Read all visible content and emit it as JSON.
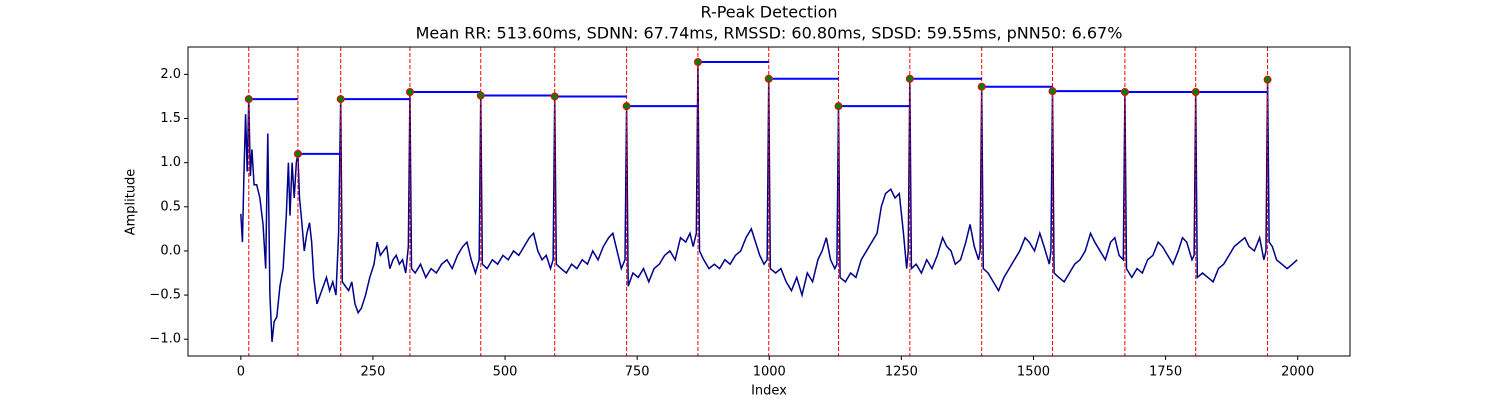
{
  "chart_data": {
    "type": "line",
    "title": "R-Peak Detection",
    "subtitle": "Mean RR: 513.60ms, SDNN: 67.74ms, RMSSD: 60.80ms, SDSD: 59.55ms, pNN50: 6.67%",
    "xlabel": "Index",
    "ylabel": "Amplitude",
    "color": "#00008b",
    "x": [
      0,
      3,
      6,
      9,
      12,
      15,
      18,
      21,
      25,
      30,
      36,
      42,
      47,
      51,
      55,
      59,
      63,
      68,
      74,
      80,
      86,
      90,
      93,
      97,
      101,
      105,
      108,
      111,
      115,
      120,
      125,
      130,
      134,
      138,
      144,
      150,
      156,
      162,
      168,
      174,
      180,
      185,
      189,
      192,
      198,
      204,
      210,
      216,
      222,
      228,
      236,
      244,
      252,
      258,
      264,
      270,
      276,
      282,
      288,
      294,
      300,
      306,
      312,
      317,
      320,
      323,
      330,
      340,
      350,
      360,
      370,
      380,
      390,
      400,
      410,
      420,
      428,
      436,
      444,
      451,
      454,
      457,
      466,
      476,
      486,
      496,
      506,
      516,
      526,
      536,
      546,
      554,
      562,
      570,
      578,
      586,
      591,
      594,
      597,
      606,
      616,
      626,
      636,
      646,
      656,
      666,
      676,
      686,
      696,
      704,
      712,
      720,
      727,
      730,
      733,
      742,
      752,
      762,
      772,
      782,
      792,
      802,
      812,
      822,
      832,
      842,
      850,
      856,
      862,
      865,
      868,
      876,
      886,
      896,
      906,
      916,
      926,
      936,
      946,
      956,
      966,
      974,
      982,
      990,
      996,
      999,
      1002,
      1012,
      1022,
      1032,
      1042,
      1052,
      1062,
      1072,
      1082,
      1092,
      1100,
      1108,
      1116,
      1124,
      1128,
      1131,
      1134,
      1144,
      1154,
      1164,
      1174,
      1184,
      1194,
      1204,
      1212,
      1220,
      1230,
      1238,
      1246,
      1254,
      1260,
      1263,
      1266,
      1269,
      1278,
      1288,
      1298,
      1308,
      1318,
      1328,
      1336,
      1344,
      1352,
      1362,
      1372,
      1380,
      1388,
      1396,
      1399,
      1402,
      1405,
      1414,
      1424,
      1434,
      1444,
      1454,
      1464,
      1474,
      1484,
      1492,
      1502,
      1512,
      1520,
      1530,
      1533,
      1536,
      1539,
      1548,
      1558,
      1568,
      1578,
      1588,
      1598,
      1608,
      1616,
      1626,
      1636,
      1646,
      1654,
      1662,
      1670,
      1673,
      1676,
      1686,
      1696,
      1706,
      1716,
      1726,
      1736,
      1744,
      1754,
      1764,
      1774,
      1782,
      1790,
      1800,
      1804,
      1807,
      1810,
      1820,
      1830,
      1840,
      1850,
      1860,
      1870,
      1880,
      1890,
      1900,
      1908,
      1918,
      1928,
      1936,
      1940,
      1943,
      1946,
      1952,
      1960,
      1970,
      1980,
      1990,
      1999
    ],
    "values": [
      0.42,
      0.1,
      0.9,
      1.55,
      0.9,
      1.72,
      0.85,
      1.15,
      0.75,
      0.75,
      0.6,
      0.3,
      -0.2,
      1.33,
      -0.5,
      -1.03,
      -0.8,
      -0.75,
      -0.4,
      -0.2,
      0.4,
      1.0,
      0.4,
      1.0,
      0.6,
      1.0,
      1.1,
      0.6,
      0.35,
      0.0,
      0.2,
      0.32,
      0.1,
      -0.3,
      -0.6,
      -0.5,
      -0.4,
      -0.3,
      -0.45,
      -0.35,
      -0.5,
      0.2,
      1.72,
      -0.35,
      -0.4,
      -0.45,
      -0.35,
      -0.6,
      -0.7,
      -0.65,
      -0.5,
      -0.3,
      -0.15,
      0.1,
      -0.05,
      0.0,
      0.05,
      -0.2,
      -0.1,
      -0.05,
      -0.15,
      -0.1,
      -0.25,
      0.05,
      1.8,
      -0.2,
      -0.25,
      -0.15,
      -0.3,
      -0.2,
      -0.25,
      -0.15,
      -0.1,
      -0.2,
      -0.05,
      0.05,
      0.1,
      -0.1,
      -0.25,
      -0.1,
      1.76,
      -0.15,
      -0.2,
      -0.1,
      -0.15,
      -0.05,
      -0.1,
      0.0,
      -0.05,
      0.05,
      0.15,
      0.2,
      0.0,
      -0.1,
      -0.05,
      -0.2,
      -0.1,
      1.75,
      -0.15,
      -0.2,
      -0.25,
      -0.15,
      -0.2,
      -0.1,
      -0.15,
      0.0,
      -0.1,
      0.05,
      0.15,
      0.2,
      0.0,
      -0.2,
      -0.1,
      1.64,
      -0.4,
      -0.25,
      -0.3,
      -0.2,
      -0.35,
      -0.2,
      -0.15,
      -0.05,
      0.0,
      -0.1,
      0.15,
      0.1,
      0.2,
      0.05,
      0.2,
      2.14,
      0.0,
      -0.1,
      -0.2,
      -0.15,
      -0.2,
      -0.1,
      -0.15,
      -0.05,
      0.0,
      0.15,
      0.25,
      0.1,
      -0.05,
      -0.15,
      -0.1,
      1.95,
      -0.2,
      -0.25,
      -0.2,
      -0.35,
      -0.45,
      -0.3,
      -0.5,
      -0.25,
      -0.35,
      -0.1,
      0.0,
      0.15,
      -0.1,
      -0.2,
      -0.15,
      1.64,
      -0.3,
      -0.35,
      -0.25,
      -0.3,
      -0.1,
      0.0,
      0.1,
      0.2,
      0.5,
      0.65,
      0.7,
      0.6,
      0.65,
      0.2,
      -0.2,
      0.0,
      1.95,
      -0.2,
      -0.15,
      -0.25,
      -0.1,
      -0.2,
      -0.05,
      0.15,
      0.05,
      0.0,
      -0.15,
      -0.1,
      0.1,
      0.3,
      0.05,
      -0.1,
      0.0,
      1.86,
      -0.2,
      -0.25,
      -0.35,
      -0.45,
      -0.3,
      -0.2,
      -0.1,
      0.0,
      0.15,
      0.1,
      0.0,
      0.2,
      0.05,
      -0.15,
      0.0,
      1.81,
      -0.25,
      -0.3,
      -0.35,
      -0.25,
      -0.15,
      -0.1,
      0.0,
      0.2,
      0.1,
      0.0,
      -0.1,
      0.1,
      0.15,
      -0.05,
      -0.1,
      1.8,
      -0.2,
      -0.3,
      -0.2,
      -0.25,
      -0.1,
      -0.05,
      0.1,
      0.05,
      -0.05,
      -0.15,
      0.0,
      0.15,
      0.1,
      -0.1,
      -0.05,
      1.8,
      -0.3,
      -0.25,
      -0.3,
      -0.35,
      -0.2,
      -0.15,
      -0.05,
      0.05,
      0.1,
      0.15,
      0.05,
      0.0,
      0.15,
      -0.1,
      0.0,
      1.94,
      0.1,
      0.05,
      -0.1,
      -0.15,
      -0.2,
      -0.15,
      -0.1
    ],
    "peaks": {
      "x": [
        15,
        108,
        189,
        320,
        454,
        594,
        730,
        865,
        999,
        1131,
        1266,
        1402,
        1536,
        1673,
        1807,
        1943
      ],
      "values": [
        1.72,
        1.1,
        1.72,
        1.8,
        1.76,
        1.75,
        1.64,
        2.14,
        1.95,
        1.64,
        1.95,
        1.86,
        1.81,
        1.8,
        1.8,
        1.94
      ],
      "marker_color": "#008000",
      "marker_edge": "#ff0000",
      "line_color": "#ff0000",
      "rr_color": "#0000ff"
    },
    "xlim": [
      -100,
      2099
    ],
    "ylim": [
      -1.19,
      2.31
    ],
    "xticks": [
      0,
      250,
      500,
      750,
      1000,
      1250,
      1500,
      1750,
      2000
    ],
    "yticks": [
      {
        "value": -1,
        "label": "−1.0"
      },
      {
        "value": -0.5,
        "label": "−0.5"
      },
      {
        "value": 0,
        "label": "0.0"
      },
      {
        "value": 0.5,
        "label": "0.5"
      },
      {
        "value": 1,
        "label": "1.0"
      },
      {
        "value": 1.5,
        "label": "1.5"
      },
      {
        "value": 2,
        "label": "2.0"
      }
    ]
  }
}
